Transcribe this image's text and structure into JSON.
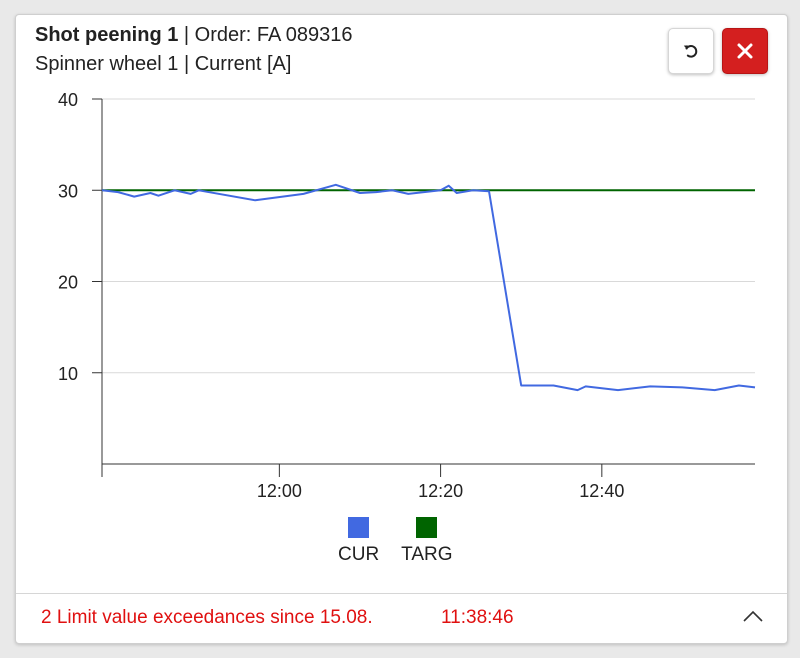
{
  "header": {
    "machine": "Shot peening 1",
    "order": "| Order: FA 089316",
    "subtitle": "Spinner wheel 1 | Current [A]"
  },
  "buttons": {
    "reset_icon": "undo-icon",
    "close_icon": "close-icon",
    "close_color": "#d41f1f"
  },
  "chart_data": {
    "type": "line",
    "x_axis": {
      "type": "time",
      "range": [
        "11:38",
        "12:59"
      ],
      "tick_labels": [
        "12:00",
        "12:20",
        "12:40"
      ]
    },
    "y_axis": {
      "range": [
        0,
        40
      ],
      "tick_labels": [
        "10",
        "20",
        "30",
        "40"
      ]
    },
    "grid": "horizontal",
    "legend_position": "bottom",
    "series": [
      {
        "name": "CUR",
        "color": "#4169e1",
        "points": [
          [
            "11:38",
            30.0
          ],
          [
            "11:40",
            29.8
          ],
          [
            "11:42",
            29.3
          ],
          [
            "11:44",
            29.7
          ],
          [
            "11:45",
            29.4
          ],
          [
            "11:47",
            30.0
          ],
          [
            "11:49",
            29.6
          ],
          [
            "11:50",
            30.0
          ],
          [
            "11:57",
            28.9
          ],
          [
            "12:03",
            29.6
          ],
          [
            "12:07",
            30.6
          ],
          [
            "12:10",
            29.7
          ],
          [
            "12:12",
            29.8
          ],
          [
            "12:14",
            30.0
          ],
          [
            "12:16",
            29.6
          ],
          [
            "12:20",
            30.0
          ],
          [
            "12:21",
            30.5
          ],
          [
            "12:22",
            29.7
          ],
          [
            "12:24",
            30.0
          ],
          [
            "12:26",
            29.9
          ],
          [
            "12:30",
            8.6
          ],
          [
            "12:34",
            8.6
          ],
          [
            "12:37",
            8.1
          ],
          [
            "12:38",
            8.5
          ],
          [
            "12:42",
            8.1
          ],
          [
            "12:46",
            8.5
          ],
          [
            "12:50",
            8.4
          ],
          [
            "12:54",
            8.1
          ],
          [
            "12:57",
            8.6
          ],
          [
            "12:59",
            8.4
          ]
        ]
      },
      {
        "name": "TARG",
        "color": "#006400",
        "points": [
          [
            "11:38",
            30.0
          ],
          [
            "12:59",
            30.0
          ]
        ]
      }
    ]
  },
  "footer": {
    "message": "2 Limit value exceedances since 15.08.",
    "time": "11:38:46",
    "toggle_icon": "chevron-up-icon"
  }
}
